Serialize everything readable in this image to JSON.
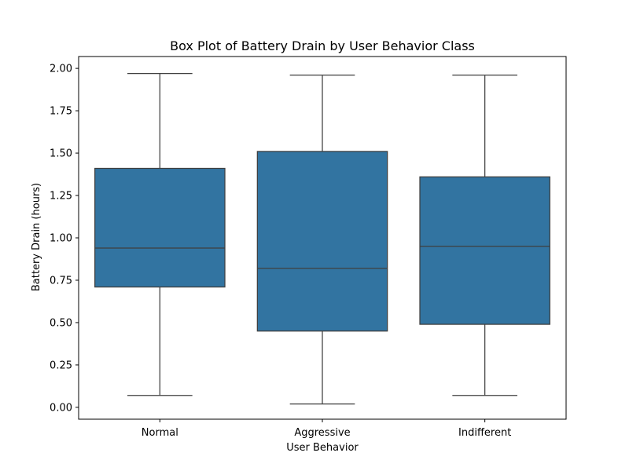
{
  "chart_data": {
    "type": "box",
    "title": "Box Plot of Battery Drain by User Behavior Class",
    "xlabel": "User Behavior",
    "ylabel": "Battery Drain (hours)",
    "ylim": [
      -0.07,
      2.07
    ],
    "yticks": [
      0.0,
      0.25,
      0.5,
      0.75,
      1.0,
      1.25,
      1.5,
      1.75,
      2.0
    ],
    "ytick_labels": [
      "0.00",
      "0.25",
      "0.50",
      "0.75",
      "1.00",
      "1.25",
      "1.50",
      "1.75",
      "2.00"
    ],
    "grid": false,
    "categories": [
      "Normal",
      "Aggressive",
      "Indifferent"
    ],
    "series": [
      {
        "category": "Normal",
        "whisker_low": 0.07,
        "q1": 0.71,
        "median": 0.94,
        "q3": 1.41,
        "whisker_high": 1.97
      },
      {
        "category": "Aggressive",
        "whisker_low": 0.02,
        "q1": 0.45,
        "median": 0.82,
        "q3": 1.51,
        "whisker_high": 1.96
      },
      {
        "category": "Indifferent",
        "whisker_low": 0.07,
        "q1": 0.49,
        "median": 0.95,
        "q3": 1.36,
        "whisker_high": 1.96
      }
    ],
    "colors": {
      "box_fill": "#3274a1",
      "line": "#3f3f3f",
      "axis": "#000000"
    }
  }
}
